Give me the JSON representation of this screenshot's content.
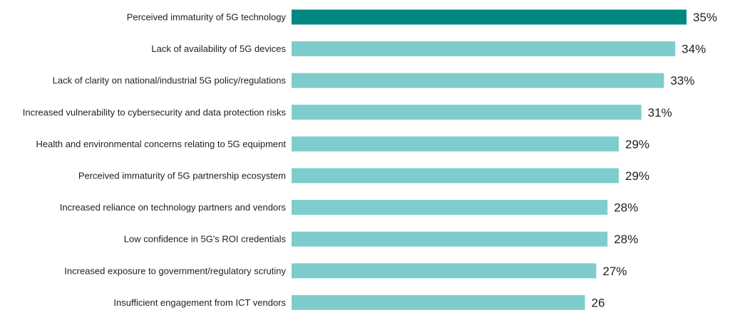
{
  "chart_data": {
    "type": "bar",
    "orientation": "horizontal",
    "title": "",
    "xlabel": "",
    "ylabel": "",
    "grid": false,
    "legend": "none",
    "categories": [
      "Perceived immaturity of 5G technology",
      "Lack of availability of 5G devices",
      "Lack of clarity on national/industrial 5G policy/regulations",
      "Increased vulnerability to cybersecurity and data protection risks",
      "Health and environmental concerns relating to 5G equipment",
      "Perceived immaturity of 5G partnership ecosystem",
      "Increased reliance on technology partners and vendors",
      "Low confidence in 5G's ROI credentials",
      "Increased exposure to government/regulatory scrutiny",
      "Insufficient engagement from ICT vendors"
    ],
    "values": [
      35,
      34,
      33,
      31,
      29,
      29,
      28,
      28,
      27,
      26
    ],
    "value_labels": [
      "35%",
      "34%",
      "33%",
      "31%",
      "29%",
      "29%",
      "28%",
      "28%",
      "27%",
      "26"
    ],
    "xlim": [
      0,
      35
    ],
    "colors": {
      "highlight": "#00877f",
      "bar": "#7ecdcc",
      "text": "#1f1f1f"
    },
    "highlight_index": 0
  }
}
